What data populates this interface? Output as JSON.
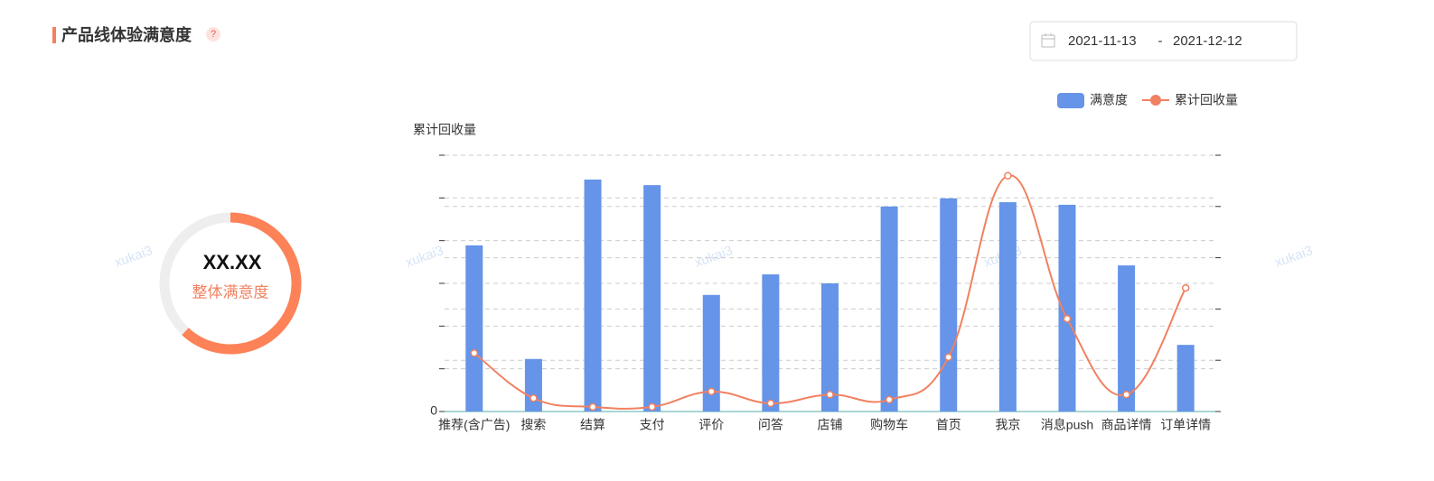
{
  "header": {
    "title": "产品线体验满意度",
    "help_icon": "?"
  },
  "date_range": {
    "start": "2021-11-13",
    "separator": "-",
    "end": "2021-12-12"
  },
  "watermark": "xukai3",
  "gauge": {
    "value_text": "XX.XX",
    "label": "整体满意度",
    "progress": 62,
    "max": 100
  },
  "chart_data": {
    "type": "combo",
    "y_label": "累计回收量",
    "categories": [
      "推荐(含广告)",
      "搜索",
      "结算",
      "支付",
      "评价",
      "问答",
      "店铺",
      "购物车",
      "首页",
      "我京",
      "消息push",
      "商品详情",
      "订单详情"
    ],
    "series": [
      {
        "name": "满意度",
        "type": "bar",
        "color": "#6594e8",
        "values": [
          3.89,
          1.23,
          5.43,
          5.3,
          2.73,
          3.21,
          3.0,
          4.8,
          4.99,
          4.9,
          4.84,
          3.42,
          1.56
        ]
      },
      {
        "name": "累计回收量",
        "type": "line",
        "axis": "y2",
        "color": "#f08161",
        "values": [
          1.14,
          0.26,
          0.09,
          0.09,
          0.39,
          0.16,
          0.33,
          0.23,
          1.06,
          4.6,
          1.81,
          0.33,
          2.41
        ]
      }
    ],
    "ylim": [
      0,
      6
    ],
    "yticks": [
      0,
      {
        "value": 1,
        "label": null
      },
      {
        "value": 2,
        "label": null
      },
      {
        "value": 3,
        "label": null
      },
      {
        "value": 4,
        "label": null
      },
      {
        "value": 5,
        "label": null
      },
      {
        "value": 6,
        "label": null
      }
    ],
    "y2lim": [
      0,
      5
    ],
    "y2ticks": [
      {
        "value": 0,
        "label": null
      },
      {
        "value": 1,
        "label": null
      },
      {
        "value": 2,
        "label": null
      },
      {
        "value": 3,
        "label": null
      },
      {
        "value": 4,
        "label": null
      },
      {
        "value": 5,
        "label": null
      }
    ],
    "grid": true,
    "legend": "top-right"
  }
}
